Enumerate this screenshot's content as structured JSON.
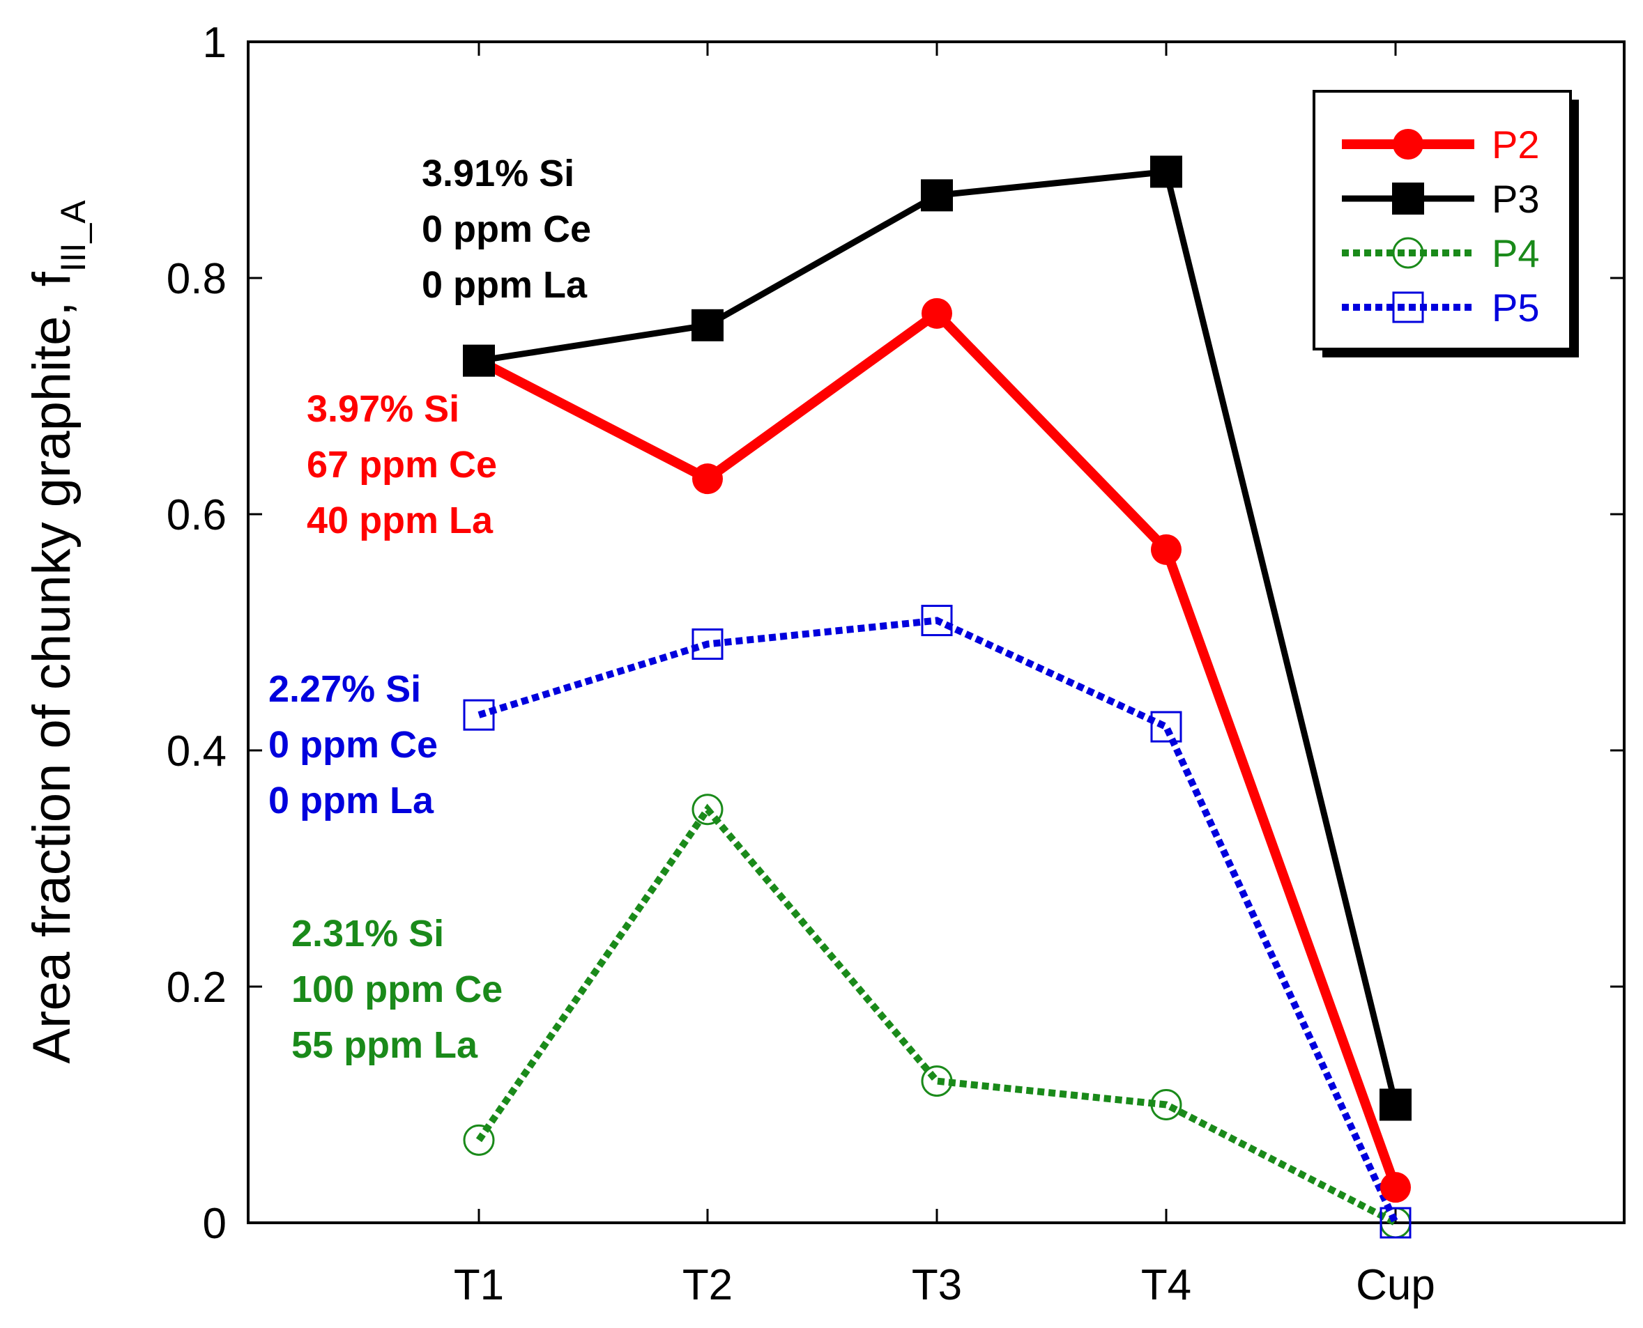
{
  "chart_data": {
    "type": "line",
    "title": "",
    "xlabel": "",
    "ylabel": "Area fraction of chunky graphite, f",
    "ylabel_subscript": "III_A",
    "categories": [
      "T1",
      "T2",
      "T3",
      "T4",
      "Cup"
    ],
    "ylim": [
      0,
      1
    ],
    "yticks": [
      "0",
      "0.2",
      "0.4",
      "0.6",
      "0.8",
      "1"
    ],
    "legend_position": "top-right",
    "series": [
      {
        "name": "P2",
        "color": "#ff0000",
        "marker": "filled-circle",
        "style": "solid",
        "values": [
          0.73,
          0.63,
          0.77,
          0.57,
          0.03
        ]
      },
      {
        "name": "P3",
        "color": "#000000",
        "marker": "filled-square",
        "style": "solid",
        "values": [
          0.73,
          0.76,
          0.87,
          0.89,
          0.1
        ]
      },
      {
        "name": "P4",
        "color": "#1a8a1a",
        "marker": "open-circle",
        "style": "dotted",
        "values": [
          0.07,
          0.35,
          0.12,
          0.1,
          0.0
        ]
      },
      {
        "name": "P5",
        "color": "#0000dd",
        "marker": "open-square",
        "style": "dotted",
        "values": [
          0.43,
          0.49,
          0.51,
          0.42,
          0.0
        ]
      }
    ],
    "annotations": [
      {
        "series": "P3",
        "color": "#000000",
        "lines": [
          "3.91% Si",
          "0 ppm Ce",
          "0 ppm La"
        ]
      },
      {
        "series": "P2",
        "color": "#ff0000",
        "lines": [
          "3.97% Si",
          "67 ppm Ce",
          "40 ppm La"
        ]
      },
      {
        "series": "P5",
        "color": "#0000dd",
        "lines": [
          "2.27% Si",
          "0 ppm Ce",
          "0 ppm La"
        ]
      },
      {
        "series": "P4",
        "color": "#1a8a1a",
        "lines": [
          "2.31% Si",
          "100 ppm Ce",
          "55 ppm La"
        ]
      }
    ]
  }
}
